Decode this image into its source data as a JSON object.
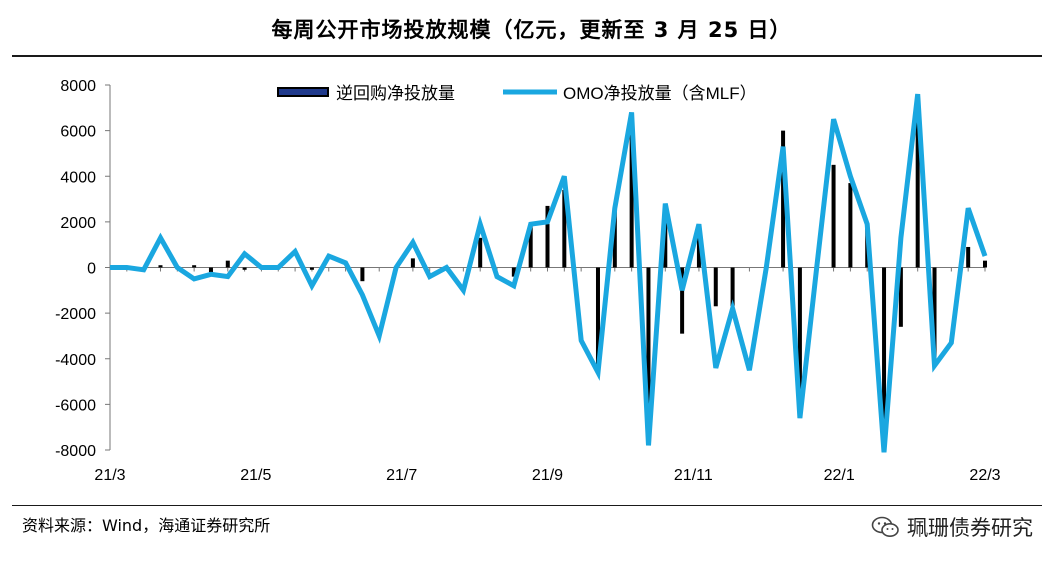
{
  "header": {
    "title": "每周公开市场投放规模（亿元，更新至 3 月 25 日）"
  },
  "footer": {
    "source": "资料来源：Wind，海通证券研究所",
    "watermark": "珮珊债券研究",
    "watermark_icon": "wechat-icon"
  },
  "colors": {
    "bar": "#000000",
    "line": "#1aa7e0",
    "axis": "#777777"
  },
  "chart_data": {
    "type": "bar+line",
    "title": "每周公开市场投放规模（亿元，更新至 3 月 25 日）",
    "ylim": [
      -8000,
      8000
    ],
    "yticks": [
      8000,
      6000,
      4000,
      2000,
      0,
      -2000,
      -4000,
      -6000,
      -8000
    ],
    "xtick_labels": [
      "21/3",
      "21/5",
      "21/7",
      "21/9",
      "21/11",
      "22/1",
      "22/3"
    ],
    "grid": false,
    "legend_position": "top",
    "series": [
      {
        "name": "逆回购净投放量",
        "kind": "bar",
        "values": [
          0,
          0,
          -100,
          100,
          0,
          100,
          -200,
          300,
          -100,
          0,
          0,
          0,
          -100,
          0,
          0,
          -600,
          0,
          0,
          400,
          0,
          0,
          0,
          1300,
          0,
          -400,
          1900,
          2700,
          3400,
          0,
          -4600,
          2600,
          6700,
          -7600,
          2700,
          -2900,
          1900,
          -1700,
          -1700,
          0,
          0,
          6000,
          -6600,
          0,
          4500,
          3700,
          1900,
          -8100,
          -2600,
          7600,
          -4000,
          0,
          900,
          300
        ]
      },
      {
        "name": "OMO净投放量（含MLF）",
        "kind": "line",
        "values": [
          0,
          0,
          -100,
          1300,
          0,
          -500,
          -300,
          -400,
          600,
          0,
          0,
          700,
          -800,
          500,
          200,
          -1200,
          -3000,
          0,
          1100,
          -400,
          0,
          -1000,
          1900,
          -400,
          -800,
          1900,
          2000,
          4000,
          -3200,
          -4600,
          2600,
          6800,
          -7800,
          2800,
          -1000,
          1900,
          -4400,
          -1800,
          -4500,
          0,
          5300,
          -6600,
          0,
          6500,
          4000,
          1900,
          -8100,
          1300,
          7600,
          -4300,
          -3300,
          2600,
          500
        ]
      }
    ]
  }
}
